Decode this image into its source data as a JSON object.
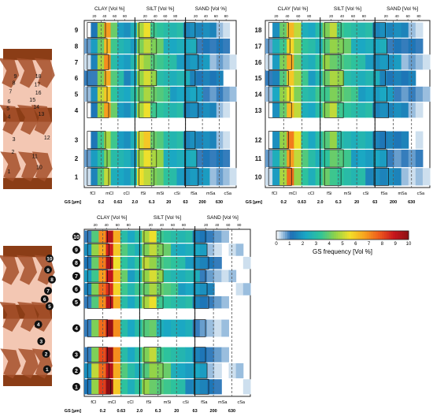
{
  "chart_data": {
    "type": "heatmap",
    "group_labels": [
      "CLAY [Vol %]",
      "SILT [Vol %]",
      "SAND [Vol %]"
    ],
    "top_ticks": [
      20,
      40,
      60,
      80
    ],
    "class_labels": [
      "fCl",
      "mCl",
      "cCl",
      "fSi",
      "mSi",
      "cSi",
      "fSa",
      "mSa",
      "cSa"
    ],
    "gs_axis_label": "GS [µm]",
    "gs_ticks": [
      "0.2",
      "0.63",
      "2.0",
      "6.3",
      "20",
      "63",
      "200",
      "630"
    ],
    "colorbar": {
      "label": "GS frequency [Vol %]",
      "min": 0,
      "max": 10,
      "ticks": [
        0,
        1,
        2,
        3,
        4,
        5,
        6,
        7,
        8,
        9,
        10
      ],
      "colors": [
        "#ffffff",
        "#1f6fb5",
        "#1aa7c4",
        "#2fc49a",
        "#8fd24a",
        "#f2e02a",
        "#f7a21f",
        "#ee5a1c",
        "#c8161d",
        "#8a0f14"
      ]
    },
    "panels": [
      {
        "id": "A",
        "groups": [
          {
            "samples": [
              9,
              8,
              7,
              6,
              5,
              4
            ],
            "profile": [
              0.5,
              1.5,
              4.5,
              6.5,
              3.5,
              2.5,
              2,
              2.5,
              4.5,
              5,
              4,
              3.5,
              3,
              2.5,
              2.5,
              2,
              2,
              1.5,
              1.5,
              1,
              1,
              0.5,
              0
            ]
          },
          {
            "samples": [
              3,
              2,
              1
            ],
            "profile": [
              0.5,
              1.5,
              3.5,
              4.5,
              3,
              2.5,
              2,
              2.5,
              5,
              5.5,
              4.5,
              4,
              3,
              2.5,
              2.5,
              2,
              2,
              1.5,
              1.5,
              1,
              1,
              0.5,
              0
            ]
          }
        ]
      },
      {
        "id": "B",
        "groups": [
          {
            "samples": [
              18,
              17,
              16,
              15,
              14,
              13
            ],
            "profile": [
              0.5,
              2,
              4,
              6,
              4.5,
              3,
              2.5,
              3,
              4,
              4.5,
              4,
              3.5,
              3,
              2.5,
              2.5,
              2,
              2,
              1.5,
              1.5,
              1,
              1,
              0.5,
              0
            ]
          },
          {
            "samples": [
              12,
              11,
              10
            ],
            "profile": [
              0.5,
              2,
              4.5,
              7,
              5,
              3.5,
              2.5,
              3,
              3.5,
              4,
              3.5,
              3,
              2.5,
              2.5,
              2,
              2,
              1.5,
              1.5,
              1,
              1,
              0.5,
              0.5,
              0
            ]
          }
        ]
      },
      {
        "id": "C",
        "groups": [
          {
            "samples": [
              "10",
              "9",
              "8",
              "7",
              "6",
              "5"
            ],
            "profile": [
              1.5,
              4,
              7,
              9,
              6,
              3.5,
              2.5,
              3,
              4.5,
              5,
              4,
              3.5,
              3,
              2.5,
              2.5,
              2,
              1.5,
              1,
              0.5,
              0,
              0,
              0,
              0
            ]
          },
          {
            "samples": [
              "4"
            ],
            "profile": [
              1.5,
              4.5,
              7.5,
              9.5,
              6.5,
              3.5,
              2.5,
              3,
              3.5,
              3.5,
              3,
              2.5,
              2.5,
              2,
              2,
              1.5,
              1,
              0.5,
              0,
              0,
              0,
              0,
              0
            ]
          },
          {
            "samples": [
              "3",
              "2",
              "1"
            ],
            "profile": [
              1.5,
              4.5,
              8,
              9.5,
              6.5,
              3.5,
              2.5,
              3,
              4,
              4.5,
              4,
              3.5,
              3,
              2.5,
              2,
              2,
              1.5,
              1,
              0.5,
              0,
              0,
              0,
              0
            ]
          }
        ]
      }
    ]
  }
}
